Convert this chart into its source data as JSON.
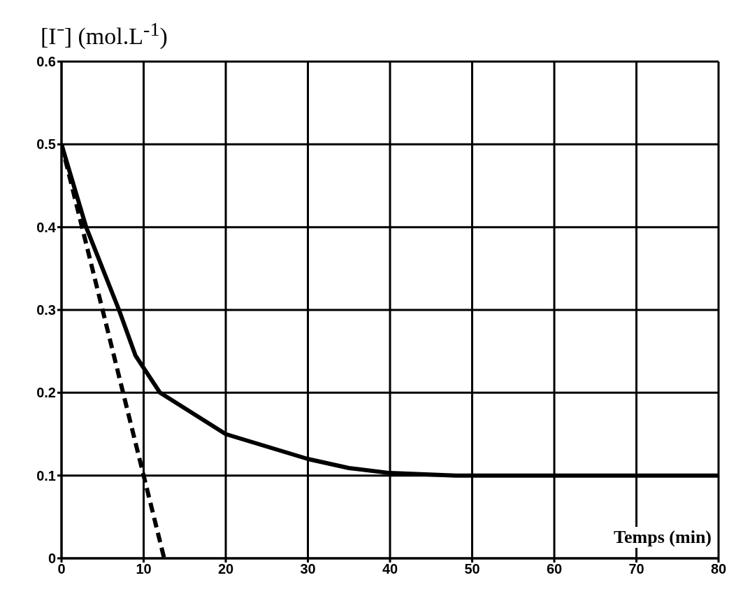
{
  "chart_data": {
    "type": "line",
    "xlabel": "Temps (min)",
    "ylabel": "[I⁻] (mol.L$^{-1}$)",
    "series": [
      {
        "color": "#000000",
        "line_style": "solid",
        "x": [
          0,
          3,
          7,
          9,
          12,
          20,
          30,
          35,
          40,
          48,
          80
        ],
        "values": [
          0.5,
          0.4,
          0.3,
          0.245,
          0.2,
          0.15,
          0.12,
          0.109,
          0.103,
          0.1,
          0.1
        ]
      },
      {
        "color": "#000000",
        "line_style": "dashed",
        "x": [
          0,
          12.5
        ],
        "values": [
          0.5,
          0
        ]
      }
    ],
    "xlim": [
      0,
      80
    ],
    "xticks": [
      0,
      10,
      20,
      30,
      40,
      50,
      60,
      70,
      80
    ],
    "ylim": [
      0,
      0.6
    ],
    "yticks": [
      0,
      0.1,
      0.2,
      0.3,
      0.4,
      0.5,
      0.6
    ],
    "grid": true,
    "marker": "none"
  }
}
